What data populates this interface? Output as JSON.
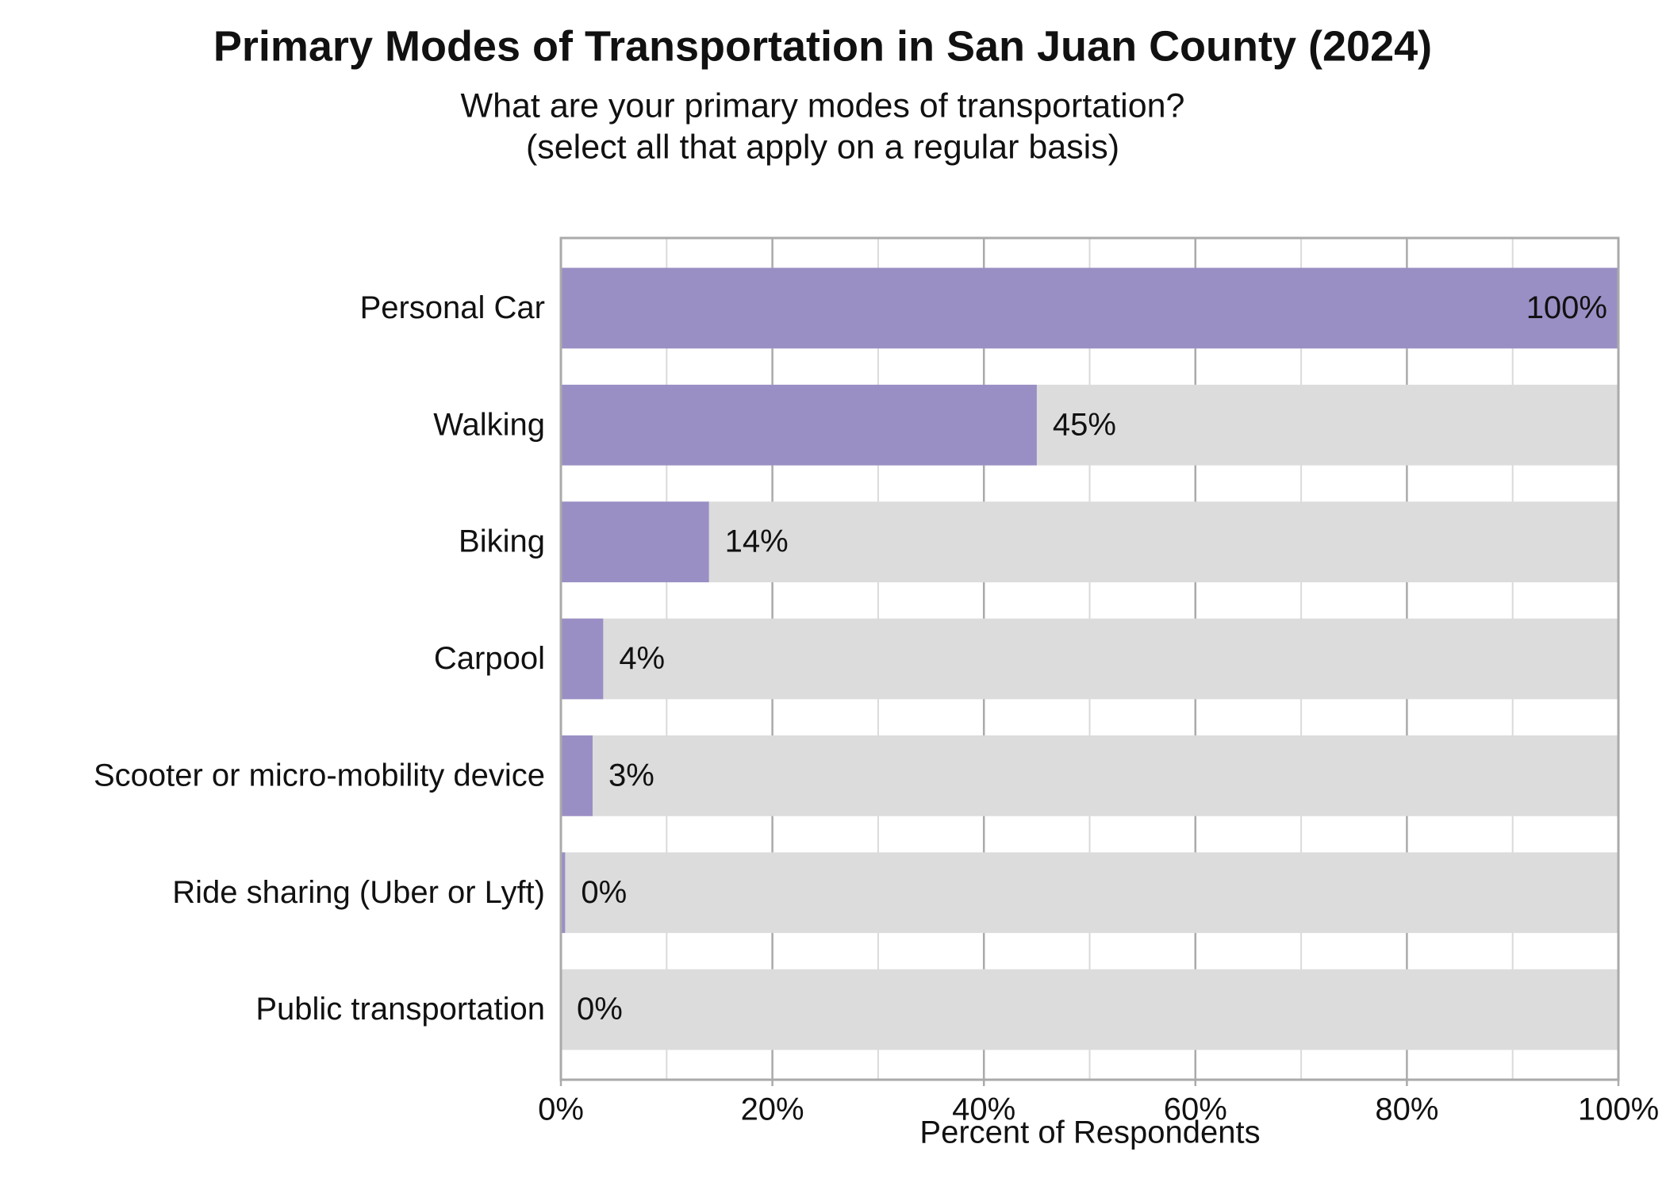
{
  "chart_data": {
    "type": "hbar",
    "title": "Primary Modes of Transportation in San Juan County (2024)",
    "subtitle": [
      "What are your primary modes of transportation?",
      "(select all that apply on a regular basis)"
    ],
    "x_label": "Percent of Respondents",
    "categories": [
      "Personal Car",
      "Walking",
      "Biking",
      "Carpool",
      "Scooter or micro-mobility device",
      "Ride sharing (Uber or Lyft)",
      "Public transportation"
    ],
    "values": [
      100,
      45,
      14,
      4,
      3,
      0.4,
      0
    ],
    "value_labels": [
      "100%",
      "45%",
      "14%",
      "4%",
      "3%",
      "0%",
      "0%"
    ],
    "color": "#9a8fc4",
    "track_color": "#dcdcdc",
    "xlim": [
      0,
      100
    ],
    "xticks": [
      {
        "value": 0,
        "label": "0%"
      },
      {
        "value": 20,
        "label": "20%"
      },
      {
        "value": 40,
        "label": "40%"
      },
      {
        "value": 60,
        "label": "60%"
      },
      {
        "value": 80,
        "label": "80%"
      },
      {
        "value": 100,
        "label": "100%"
      }
    ],
    "minor_xticks": [
      10,
      30,
      50,
      70,
      90
    ],
    "grid": true
  }
}
